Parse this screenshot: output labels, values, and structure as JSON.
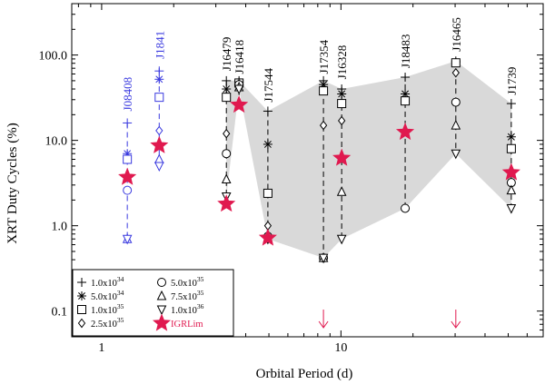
{
  "chart_data": {
    "type": "scatter",
    "xlabel": "Orbital Period (d)",
    "ylabel": "XRT Duty Cycles (%)",
    "xscale": "log",
    "yscale": "log",
    "xlim": [
      0.75,
      70
    ],
    "ylim": [
      0.05,
      400
    ],
    "x_ticks": [
      {
        "v": 1,
        "label": "1"
      },
      {
        "v": 10,
        "label": "10"
      }
    ],
    "y_ticks": [
      {
        "v": 0.1,
        "label": "0.1"
      },
      {
        "v": 1,
        "label": "1.0"
      },
      {
        "v": 10,
        "label": "10.0"
      },
      {
        "v": 100,
        "label": "100.0"
      }
    ],
    "legend": {
      "position": "bottom-left",
      "entries": [
        {
          "series": "1.0e34",
          "marker": "plus",
          "base": "1.0x10",
          "exp": "34"
        },
        {
          "series": "5.0e35",
          "marker": "circle",
          "base": "5.0x10",
          "exp": "35"
        },
        {
          "series": "5.0e34",
          "marker": "star",
          "base": "5.0x10",
          "exp": "34"
        },
        {
          "series": "7.5e35",
          "marker": "triangle",
          "base": "7.5x10",
          "exp": "35"
        },
        {
          "series": "1.0e35",
          "marker": "square",
          "base": "1.0x10",
          "exp": "35"
        },
        {
          "series": "1.0e36",
          "marker": "triangledown",
          "base": "1.0x10",
          "exp": "36"
        },
        {
          "series": "2.5e35",
          "marker": "diamond",
          "base": "2.5x10",
          "exp": "35"
        },
        {
          "series": "IGRLim",
          "marker": "bigstar",
          "base": "IGRLim",
          "exp": ""
        }
      ]
    },
    "series": [
      {
        "name": "1.0e34",
        "marker": "plus"
      },
      {
        "name": "5.0e34",
        "marker": "star"
      },
      {
        "name": "1.0e35",
        "marker": "square"
      },
      {
        "name": "2.5e35",
        "marker": "diamond"
      },
      {
        "name": "5.0e35",
        "marker": "circle"
      },
      {
        "name": "7.5e35",
        "marker": "triangle"
      },
      {
        "name": "1.0e36",
        "marker": "triangledown"
      },
      {
        "name": "IGRLim",
        "marker": "bigstar"
      }
    ],
    "sources": [
      {
        "name": "J08408",
        "color": "#3a3adf",
        "period": 1.28,
        "line_top": 16,
        "values": {
          "1.0e34": 16,
          "5.0e34": 7,
          "1.0e35": 6,
          "2.5e35": null,
          "5.0e35": 2.6,
          "7.5e35": 0.7,
          "1.0e36": 0.7,
          "IGRLim": 3.7
        },
        "label_anchor": 22
      },
      {
        "name": "J1841",
        "color": "#3a3adf",
        "period": 1.74,
        "line_top": 70,
        "values": {
          "1.0e34": 65,
          "5.0e34": 52,
          "1.0e35": 32,
          "2.5e35": 13,
          "5.0e35": null,
          "7.5e35": 6,
          "1.0e36": 5,
          "IGRLim": 8.7
        },
        "label_anchor": 90
      },
      {
        "name": "J16479",
        "color": "#000000",
        "period": 3.32,
        "line_top": 50,
        "values": {
          "1.0e34": 50,
          "5.0e34": 40,
          "1.0e35": 32,
          "2.5e35": 12,
          "5.0e35": 7,
          "7.5e35": 3.5,
          "1.0e36": 2.2,
          "IGRLim": 1.8
        },
        "label_anchor": 65
      },
      {
        "name": "J16418",
        "color": "#000000",
        "period": 3.75,
        "line_top": 50,
        "values": {
          "1.0e34": 50,
          "5.0e34": 48,
          "1.0e35": 47,
          "2.5e35": 46,
          "5.0e35": 45,
          "7.5e35": 42,
          "1.0e36": 40,
          "IGRLim": 26
        },
        "label_anchor": 60
      },
      {
        "name": "J17544",
        "color": "#000000",
        "period": 4.95,
        "line_top": 22,
        "values": {
          "1.0e34": 22,
          "5.0e34": 9,
          "1.0e35": 2.4,
          "2.5e35": 1.0,
          "5.0e35": 0.75,
          "7.5e35": 0.72,
          "1.0e36": 0.7,
          "IGRLim": 0.72
        },
        "label_anchor": 28
      },
      {
        "name": "J17354",
        "color": "#000000",
        "period": 8.45,
        "line_top": 50,
        "values": {
          "1.0e34": 50,
          "5.0e34": 45,
          "1.0e35": 38,
          "2.5e35": 15,
          "5.0e35": 0.42,
          "7.5e35": 0.42,
          "1.0e36": 0.42,
          "IGRLim": null
        },
        "label_anchor": 60,
        "upper_limit_arrow": true
      },
      {
        "name": "J16328",
        "color": "#000000",
        "period": 10.07,
        "line_top": 42,
        "values": {
          "1.0e34": 40,
          "5.0e34": 35,
          "1.0e35": 27,
          "2.5e35": 17,
          "5.0e35": null,
          "7.5e35": 2.5,
          "1.0e36": 0.7,
          "IGRLim": 6.2
        },
        "label_anchor": 52
      },
      {
        "name": "J18483",
        "color": "#000000",
        "period": 18.55,
        "line_top": 58,
        "values": {
          "1.0e34": 55,
          "5.0e34": 35,
          "1.0e35": 29,
          "2.5e35": null,
          "5.0e35": 1.6,
          "7.5e35": null,
          "1.0e36": null,
          "IGRLim": 12.5
        },
        "label_anchor": 70
      },
      {
        "name": "J16465",
        "color": "#000000",
        "period": 30.2,
        "line_top": 85,
        "values": {
          "1.0e34": 85,
          "5.0e34": 82,
          "1.0e35": 81,
          "2.5e35": 62,
          "5.0e35": 28,
          "7.5e35": 15,
          "1.0e36": 7,
          "IGRLim": null
        },
        "label_anchor": 110,
        "upper_limit_arrow": true
      },
      {
        "name": "J1739",
        "color": "#000000",
        "period": 51.5,
        "line_top": 27,
        "values": {
          "1.0e34": 27,
          "5.0e34": 11,
          "1.0e35": 8,
          "2.5e35": null,
          "5.0e35": 3.2,
          "7.5e35": 2.6,
          "1.0e36": 1.6,
          "IGRLim": 4.2
        },
        "label_anchor": 34
      }
    ],
    "colors": {
      "limit": "#e0194f",
      "band": "#d9d9d9",
      "axis": "#000000"
    }
  }
}
